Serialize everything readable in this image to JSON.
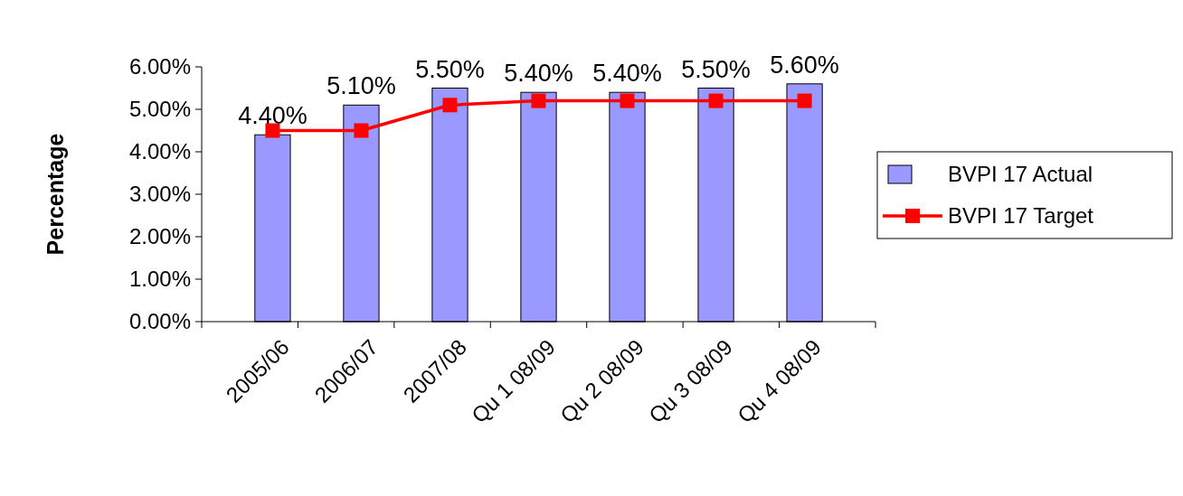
{
  "chart_data": {
    "type": "bar",
    "ylabel": "Percentage",
    "categories": [
      "2005/06",
      "2006/07",
      "2007/08",
      "Qu 1 08/09",
      "Qu 2 08/09",
      "Qu 3 08/09",
      "Qu 4 08/09"
    ],
    "series": [
      {
        "name": "BVPI 17 Actual",
        "color": "#9999ff",
        "values": [
          4.4,
          5.1,
          5.5,
          5.4,
          5.4,
          5.5,
          5.6
        ],
        "value_labels": [
          "4.40%",
          "5.10%",
          "5.50%",
          "5.40%",
          "5.40%",
          "5.50%",
          "5.60%"
        ]
      },
      {
        "name": "BVPI 17 Target",
        "type": "line",
        "color": "#ff0000",
        "marker": "square",
        "values": [
          4.5,
          4.5,
          5.1,
          5.2,
          5.2,
          5.2,
          5.2
        ]
      }
    ],
    "ylim": [
      0,
      6
    ],
    "yticks": [
      {
        "value": 0,
        "label": "0.00%"
      },
      {
        "value": 1,
        "label": "1.00%"
      },
      {
        "value": 2,
        "label": "2.00%"
      },
      {
        "value": 3,
        "label": "3.00%"
      },
      {
        "value": 4,
        "label": "4.00%"
      },
      {
        "value": 5,
        "label": "5.00%"
      },
      {
        "value": 6,
        "label": "6.00%"
      }
    ],
    "legend": "right",
    "grid": false
  }
}
